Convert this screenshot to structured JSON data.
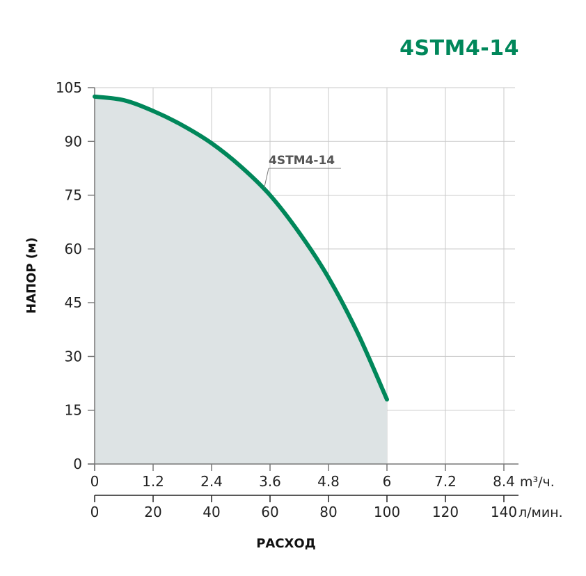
{
  "chart_data": {
    "type": "line",
    "title": "4STM4-14",
    "ylabel": "НАПОР (м)",
    "xlabel": "РАСХОД",
    "ylim": [
      0,
      105
    ],
    "yticks": [
      0,
      15,
      30,
      45,
      60,
      75,
      90,
      105
    ],
    "x_primary": {
      "unit": "m³/ч.",
      "ticks": [
        "0",
        "1.2",
        "2.4",
        "3.6",
        "4.8",
        "6",
        "7.2",
        "8.4"
      ],
      "range": [
        0,
        8.4
      ]
    },
    "x_secondary": {
      "unit": "л/мин.",
      "ticks": [
        "0",
        "20",
        "40",
        "60",
        "80",
        "100",
        "120",
        "140"
      ],
      "range": [
        0,
        140
      ]
    },
    "grid": true,
    "series": [
      {
        "name": "4STM4-14",
        "color": "#00875a",
        "fill": "#dde3e4",
        "x": [
          0,
          0.6,
          1.2,
          1.8,
          2.4,
          3.0,
          3.6,
          4.2,
          4.8,
          5.4,
          6.0
        ],
        "y": [
          102.5,
          101.5,
          98.5,
          94.5,
          89.5,
          83,
          75,
          64.5,
          52,
          36.5,
          18
        ]
      }
    ]
  }
}
